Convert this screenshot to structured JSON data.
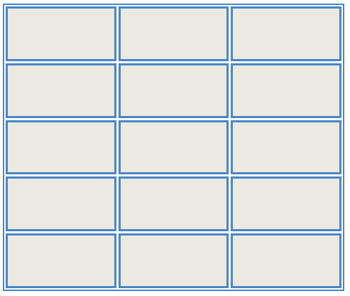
{
  "grid": {
    "rows": 5,
    "columns": 3,
    "cells": [
      [
        "",
        "",
        ""
      ],
      [
        "",
        "",
        ""
      ],
      [
        "",
        "",
        ""
      ],
      [
        "",
        "",
        ""
      ],
      [
        "",
        "",
        ""
      ]
    ]
  },
  "colors": {
    "border": "#4a86c7",
    "cell_fill": "#ece9e0",
    "background": "#ffffff"
  }
}
